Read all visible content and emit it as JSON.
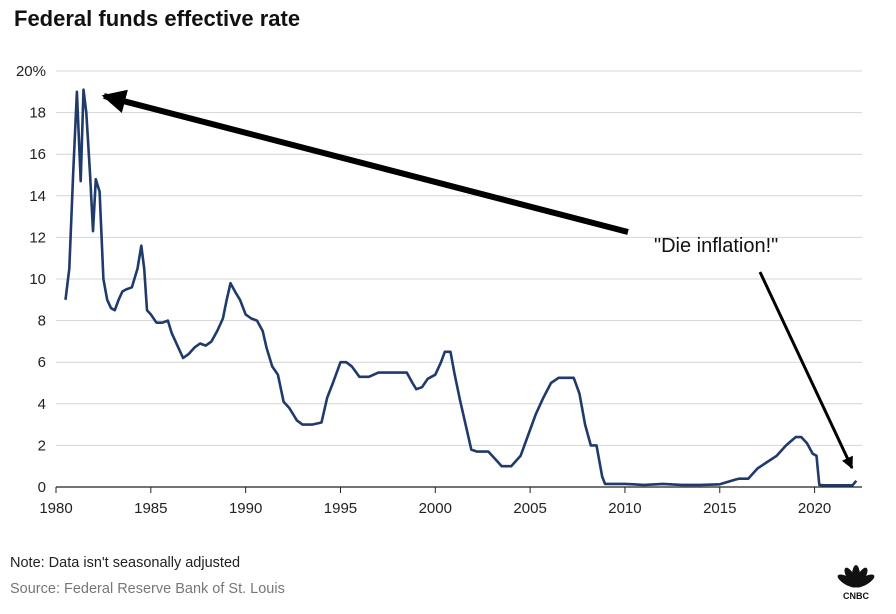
{
  "chart_data": {
    "type": "line",
    "title": "Federal funds effective rate",
    "xlabel": "",
    "ylabel": "",
    "xlim": [
      1980,
      2022.5
    ],
    "ylim": [
      0,
      20
    ],
    "grid": true,
    "x_ticks": [
      "1980",
      "1985",
      "1990",
      "1995",
      "2000",
      "2005",
      "2010",
      "2015",
      "2020"
    ],
    "y_ticks": [
      "0",
      "2",
      "4",
      "6",
      "8",
      "10",
      "12",
      "14",
      "16",
      "18",
      "20%"
    ],
    "series": [
      {
        "name": "Federal funds effective rate",
        "color": "#1f3a6b",
        "x": [
          1980.5,
          1980.7,
          1980.9,
          1981.1,
          1981.3,
          1981.45,
          1981.6,
          1981.8,
          1981.95,
          1982.1,
          1982.3,
          1982.5,
          1982.7,
          1982.9,
          1983.1,
          1983.3,
          1983.5,
          1983.7,
          1984.0,
          1984.3,
          1984.5,
          1984.65,
          1984.8,
          1985.0,
          1985.3,
          1985.6,
          1985.9,
          1986.1,
          1986.4,
          1986.7,
          1987.0,
          1987.3,
          1987.6,
          1987.9,
          1988.2,
          1988.5,
          1988.8,
          1989.0,
          1989.2,
          1989.5,
          1989.7,
          1990.0,
          1990.3,
          1990.6,
          1990.9,
          1991.1,
          1991.4,
          1991.7,
          1992.0,
          1992.3,
          1992.7,
          1993.0,
          1993.5,
          1994.0,
          1994.3,
          1994.6,
          1995.0,
          1995.3,
          1995.6,
          1996.0,
          1996.5,
          1997.0,
          1997.5,
          1998.0,
          1998.5,
          1998.8,
          1999.0,
          1999.3,
          1999.6,
          2000.0,
          2000.3,
          2000.5,
          2000.8,
          2001.0,
          2001.3,
          2001.6,
          2001.9,
          2002.2,
          2002.8,
          2003.3,
          2003.5,
          2004.0,
          2004.5,
          2004.9,
          2005.3,
          2005.7,
          2006.1,
          2006.5,
          2006.9,
          2007.3,
          2007.6,
          2007.9,
          2008.2,
          2008.5,
          2008.8,
          2008.95,
          2009.2,
          2010.0,
          2011.0,
          2012.0,
          2013.0,
          2014.0,
          2015.0,
          2015.8,
          2016.0,
          2016.5,
          2017.0,
          2017.5,
          2018.0,
          2018.5,
          2019.0,
          2019.3,
          2019.6,
          2019.9,
          2020.1,
          2020.25,
          2020.5,
          2021.0,
          2021.5,
          2022.0,
          2022.2
        ],
        "values": [
          9.0,
          10.5,
          15.0,
          19.0,
          14.7,
          19.1,
          18.0,
          15.0,
          12.3,
          14.8,
          14.2,
          10.0,
          9.0,
          8.6,
          8.5,
          9.0,
          9.4,
          9.5,
          9.6,
          10.5,
          11.6,
          10.5,
          8.5,
          8.3,
          7.9,
          7.9,
          8.0,
          7.4,
          6.8,
          6.2,
          6.4,
          6.7,
          6.9,
          6.8,
          7.0,
          7.5,
          8.1,
          9.0,
          9.8,
          9.3,
          9.0,
          8.3,
          8.1,
          8.0,
          7.5,
          6.7,
          5.8,
          5.4,
          4.1,
          3.8,
          3.2,
          3.0,
          3.0,
          3.1,
          4.3,
          5.0,
          6.0,
          6.0,
          5.8,
          5.3,
          5.3,
          5.5,
          5.5,
          5.5,
          5.5,
          5.0,
          4.7,
          4.8,
          5.2,
          5.4,
          6.0,
          6.5,
          6.5,
          5.5,
          4.2,
          3.0,
          1.8,
          1.7,
          1.7,
          1.2,
          1.0,
          1.0,
          1.5,
          2.5,
          3.5,
          4.3,
          5.0,
          5.25,
          5.25,
          5.25,
          4.5,
          3.0,
          2.0,
          2.0,
          0.5,
          0.15,
          0.15,
          0.15,
          0.1,
          0.15,
          0.1,
          0.1,
          0.13,
          0.35,
          0.4,
          0.4,
          0.9,
          1.2,
          1.5,
          2.0,
          2.4,
          2.4,
          2.1,
          1.6,
          1.5,
          0.1,
          0.08,
          0.08,
          0.08,
          0.08,
          0.3
        ]
      }
    ],
    "annotations": [
      {
        "text": "\"Die inflation!\""
      }
    ]
  },
  "footer": {
    "note": "Note: Data isn't seasonally adjusted",
    "source": "Source: Federal Reserve Bank of St. Louis",
    "logo_text": "CNBC"
  }
}
